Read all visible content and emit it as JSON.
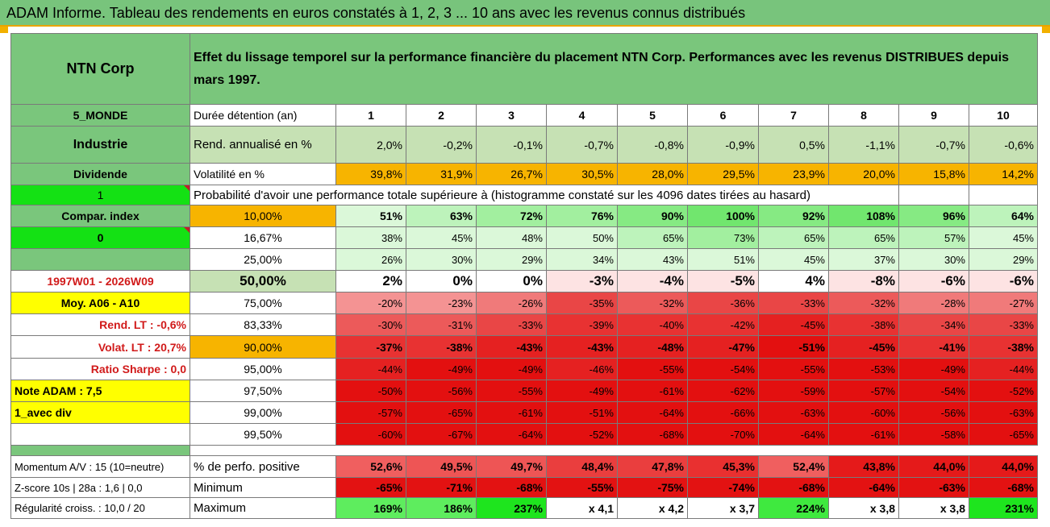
{
  "title": "ADAM Informe. Tableau des rendements en euros constatés à 1, 2, 3 ... 10 ans avec les revenus connus distribués",
  "left": {
    "name": "NTN Corp",
    "zone": "5_MONDE",
    "sector": "Industrie",
    "dividend": "Dividende",
    "div_flag": "1",
    "compar": "Compar. index",
    "compar_flag": "0",
    "period": "1997W01 - 2026W09",
    "moy": "Moy. A06 - A10",
    "rend_lt": "Rend. LT :   -0,6%",
    "volat_lt": "Volat. LT :   20,7%",
    "sharpe": "Ratio Sharpe :    0,0",
    "note": "Note ADAM : 7,5",
    "avec": "1_avec div",
    "momentum": "Momentum A/V : 15 (10=neutre)",
    "zscore": "Z-score 10s | 28a : 1,6 | 0,0",
    "regul": "Régularité croiss. : 10,0 / 20"
  },
  "header_text": "Effet du lissage temporel sur la performance financière du placement NTN Corp. Performances avec les revenus DISTRIBUES depuis mars 1997.",
  "labels": {
    "duree": "Durée détention (an)",
    "rend": "Rend. annualisé en %",
    "vol": "Volatilité en %",
    "prob": "Probabilité d'avoir une performance totale supérieure à (histogramme constaté sur les 4096 dates tirées au hasard)",
    "pos": "% de perfo. positive",
    "min": "Minimum",
    "max": "Maximum"
  },
  "years": [
    "1",
    "2",
    "3",
    "4",
    "5",
    "6",
    "7",
    "8",
    "9",
    "10"
  ],
  "rend": [
    "2,0%",
    "-0,2%",
    "-0,1%",
    "-0,7%",
    "-0,8%",
    "-0,9%",
    "0,5%",
    "-1,1%",
    "-0,7%",
    "-0,6%"
  ],
  "vol": [
    "39,8%",
    "31,9%",
    "26,7%",
    "30,5%",
    "28,0%",
    "29,5%",
    "23,9%",
    "20,0%",
    "15,8%",
    "14,2%"
  ],
  "prob_rows": [
    {
      "t": "10,00%",
      "v": [
        "51%",
        "63%",
        "72%",
        "76%",
        "90%",
        "100%",
        "92%",
        "108%",
        "96%",
        "64%"
      ]
    },
    {
      "t": "16,67%",
      "v": [
        "38%",
        "45%",
        "48%",
        "50%",
        "65%",
        "73%",
        "65%",
        "65%",
        "57%",
        "45%"
      ]
    },
    {
      "t": "25,00%",
      "v": [
        "26%",
        "30%",
        "29%",
        "34%",
        "43%",
        "51%",
        "45%",
        "37%",
        "30%",
        "29%"
      ]
    },
    {
      "t": "50,00%",
      "v": [
        "2%",
        "0%",
        "0%",
        "-3%",
        "-4%",
        "-5%",
        "4%",
        "-8%",
        "-6%",
        "-6%"
      ]
    },
    {
      "t": "75,00%",
      "v": [
        "-20%",
        "-23%",
        "-26%",
        "-35%",
        "-32%",
        "-36%",
        "-33%",
        "-32%",
        "-28%",
        "-27%"
      ]
    },
    {
      "t": "83,33%",
      "v": [
        "-30%",
        "-31%",
        "-33%",
        "-39%",
        "-40%",
        "-42%",
        "-45%",
        "-38%",
        "-34%",
        "-33%"
      ]
    },
    {
      "t": "90,00%",
      "v": [
        "-37%",
        "-38%",
        "-43%",
        "-43%",
        "-48%",
        "-47%",
        "-51%",
        "-45%",
        "-41%",
        "-38%"
      ]
    },
    {
      "t": "95,00%",
      "v": [
        "-44%",
        "-49%",
        "-49%",
        "-46%",
        "-55%",
        "-54%",
        "-55%",
        "-53%",
        "-49%",
        "-44%"
      ]
    },
    {
      "t": "97,50%",
      "v": [
        "-50%",
        "-56%",
        "-55%",
        "-49%",
        "-61%",
        "-62%",
        "-59%",
        "-57%",
        "-54%",
        "-52%"
      ]
    },
    {
      "t": "99,00%",
      "v": [
        "-57%",
        "-65%",
        "-61%",
        "-51%",
        "-64%",
        "-66%",
        "-63%",
        "-60%",
        "-56%",
        "-63%"
      ]
    },
    {
      "t": "99,50%",
      "v": [
        "-60%",
        "-67%",
        "-64%",
        "-52%",
        "-68%",
        "-70%",
        "-64%",
        "-61%",
        "-58%",
        "-65%"
      ]
    }
  ],
  "pos": [
    "52,6%",
    "49,5%",
    "49,7%",
    "48,4%",
    "47,8%",
    "45,3%",
    "52,4%",
    "43,8%",
    "44,0%",
    "44,0%"
  ],
  "min": [
    "-65%",
    "-71%",
    "-68%",
    "-55%",
    "-75%",
    "-74%",
    "-68%",
    "-64%",
    "-63%",
    "-68%"
  ],
  "max": [
    "169%",
    "186%",
    "237%",
    "x 4,1",
    "x 4,2",
    "x 3,7",
    "224%",
    "x 3,8",
    "x 3,8",
    "231%"
  ],
  "colors": {
    "header_green": "#7ac67c",
    "light_green": "#c6e1b4",
    "orange": "#f7b400",
    "bright_green": "#14e114",
    "yellow": "#ffff00",
    "label_red": "#d11a1a"
  }
}
